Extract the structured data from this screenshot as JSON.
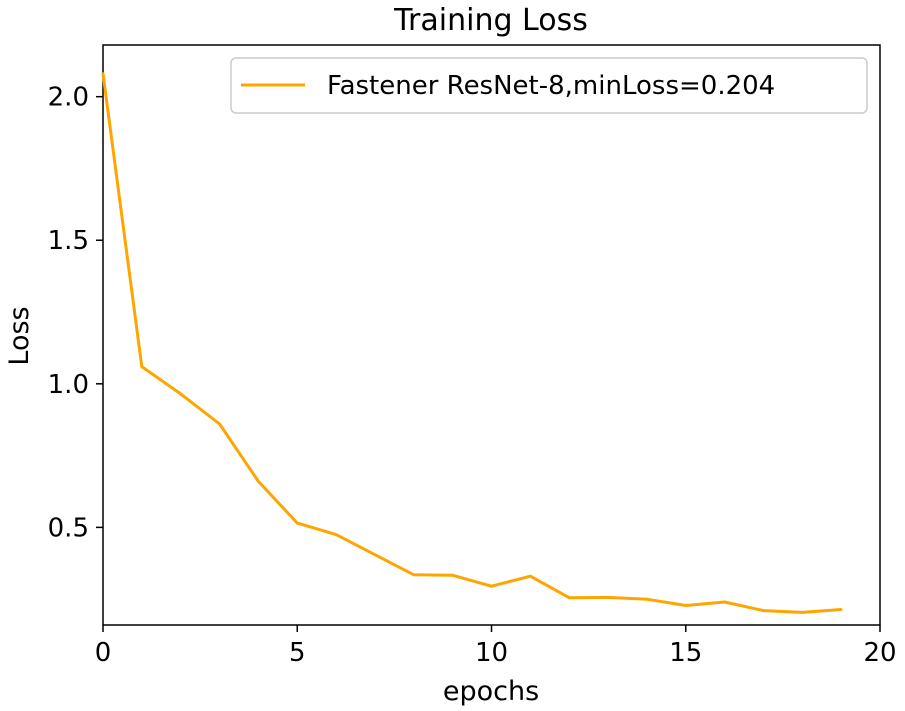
{
  "chart_data": {
    "type": "line",
    "title": "Training Loss",
    "xlabel": "epochs",
    "ylabel": "Loss",
    "xlim": [
      0,
      20
    ],
    "ylim": [
      0.16,
      2.18
    ],
    "x_ticks": [
      0,
      5,
      10,
      15,
      20
    ],
    "x_tick_labels": [
      "0",
      "5",
      "10",
      "15",
      "20"
    ],
    "y_ticks": [
      0.5,
      1.0,
      1.5,
      2.0
    ],
    "y_tick_labels": [
      "0.5",
      "1.0",
      "1.5",
      "2.0"
    ],
    "grid": false,
    "legend_position": "top-right",
    "series": [
      {
        "name": "Fastener ResNet-8,minLoss=0.204",
        "color": "#ffa500",
        "x": [
          0,
          1,
          2,
          3,
          4,
          5,
          6,
          7,
          8,
          9,
          10,
          11,
          12,
          13,
          14,
          15,
          16,
          17,
          18,
          19
        ],
        "y": [
          2.08,
          1.06,
          0.965,
          0.86,
          0.66,
          0.515,
          0.475,
          0.405,
          0.335,
          0.333,
          0.295,
          0.33,
          0.255,
          0.256,
          0.25,
          0.228,
          0.24,
          0.21,
          0.204,
          0.214
        ]
      }
    ]
  }
}
